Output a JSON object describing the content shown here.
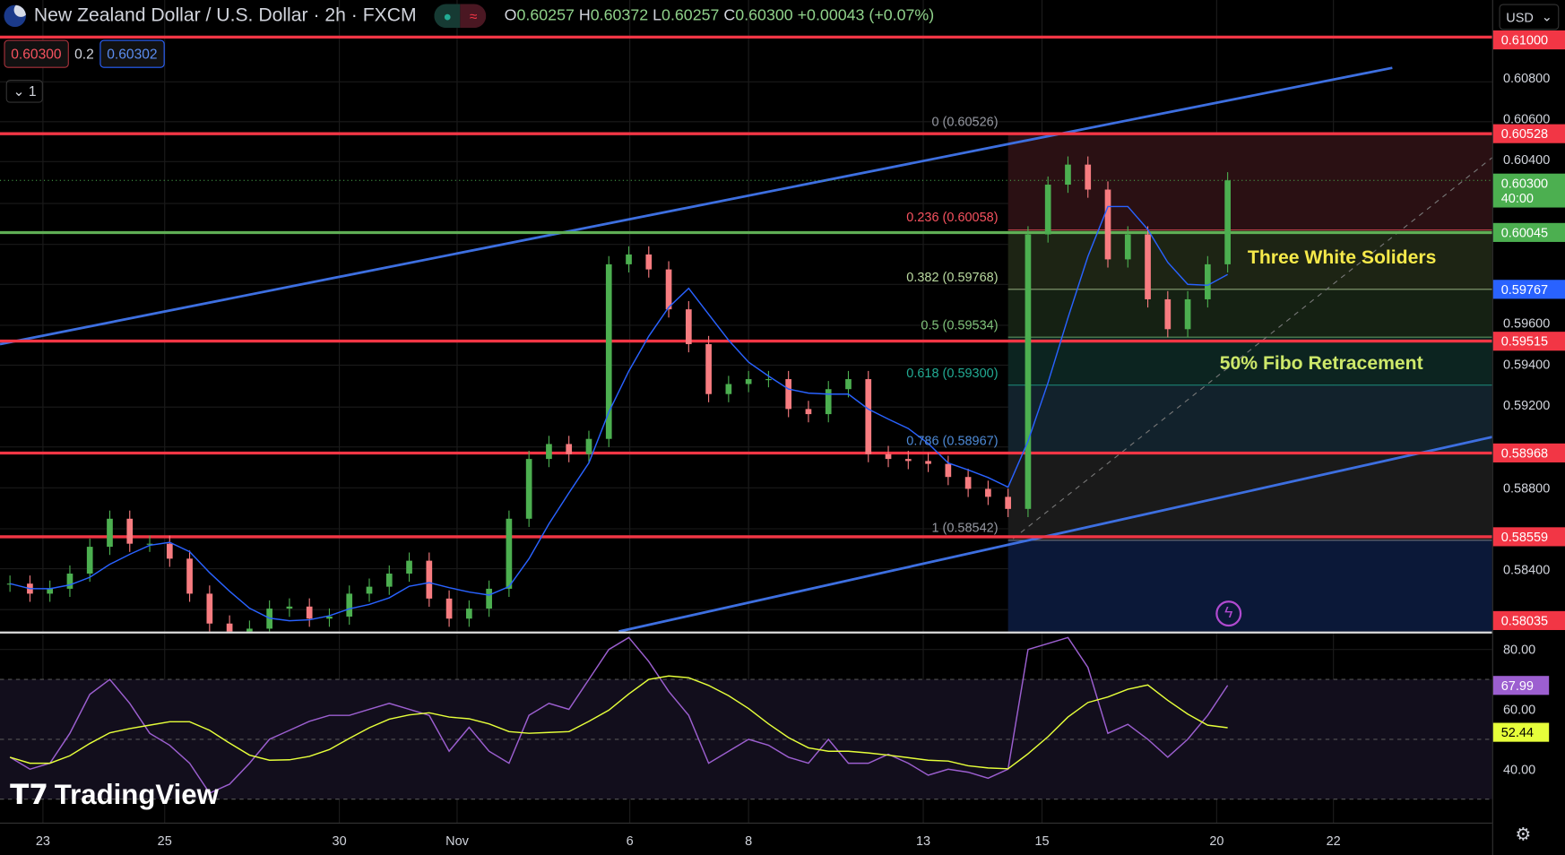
{
  "header": {
    "title": "New Zealand Dollar / U.S. Dollar · 2h · FXCM",
    "open": "0.60257",
    "high": "0.60372",
    "low": "0.60257",
    "close": "0.60300",
    "change": "+0.00043 (+0.07%)",
    "o": "O",
    "h": "H",
    "l": "L",
    "c": "C",
    "toggle_wave": "≈"
  },
  "legend": {
    "sell": "0.60300",
    "spread": "0.2",
    "buy": "0.60302",
    "collapse": "⌄ 1"
  },
  "currency": "USD",
  "annotations": {
    "pattern": "Three White Soliders",
    "fibo": "50% Fibo Retracement"
  },
  "fib_levels": [
    {
      "label": "0 (0.60526)",
      "value": 0.60526,
      "color": "#9598a1"
    },
    {
      "label": "0.236 (0.60058)",
      "value": 0.60058,
      "color": "#f7525f"
    },
    {
      "label": "0.382 (0.59768)",
      "value": 0.59768,
      "color": "#b9d99f"
    },
    {
      "label": "0.5 (0.59534)",
      "value": 0.59534,
      "color": "#7fc27a"
    },
    {
      "label": "0.618 (0.59300)",
      "value": 0.593,
      "color": "#22ab94"
    },
    {
      "label": "0.786 (0.58967)",
      "value": 0.58967,
      "color": "#4e8ad6"
    },
    {
      "label": "1 (0.58542)",
      "value": 0.58542,
      "color": "#9598a1"
    }
  ],
  "price_axis": {
    "ticks": [
      "0.60800",
      "0.60600",
      "0.60400",
      "0.59600",
      "0.59400",
      "0.59200",
      "0.58800",
      "0.58400"
    ],
    "badges": [
      {
        "text": "0.61000",
        "value": 0.61,
        "color": "#f23645"
      },
      {
        "text": "0.60528",
        "value": 0.60528,
        "color": "#f23645"
      },
      {
        "text": "0.60300",
        "sub": "40:00",
        "value": 0.603,
        "color": "#4caf50"
      },
      {
        "text": "0.60045",
        "value": 0.60045,
        "color": "#4caf50"
      },
      {
        "text": "0.59767",
        "value": 0.59767,
        "color": "#2962ff"
      },
      {
        "text": "0.59515",
        "value": 0.59515,
        "color": "#f23645"
      },
      {
        "text": "0.58968",
        "value": 0.58968,
        "color": "#f23645"
      },
      {
        "text": "0.58559",
        "value": 0.58559,
        "color": "#f23645"
      },
      {
        "text": "0.58035",
        "value": 0.58035,
        "color": "#f23645"
      }
    ]
  },
  "rsi_axis": {
    "ticks": [
      "80.00",
      "60.00",
      "40.00"
    ],
    "rsi": "67.99",
    "rsi_color": "#9c5fd0",
    "signal": "52.44",
    "signal_color": "#e6ff3a"
  },
  "time_axis": [
    "23",
    "25",
    "30",
    "Nov",
    "6",
    "8",
    "13",
    "15",
    "20",
    "22"
  ],
  "brand": "TradingView",
  "chart_data": {
    "type": "candlestick",
    "symbol": "NZDUSD",
    "interval": "2h",
    "closes": [
      0.5833,
      0.58281,
      0.58305,
      0.58379,
      0.5851,
      0.58647,
      0.58525,
      0.58525,
      0.58452,
      0.58281,
      0.58135,
      0.58072,
      0.5811,
      0.58208,
      0.58218,
      0.58159,
      0.58169,
      0.58281,
      0.58315,
      0.58379,
      0.58442,
      0.58257,
      0.58159,
      0.58208,
      0.58305,
      0.58647,
      0.58939,
      0.59012,
      0.58963,
      0.59037,
      0.5989,
      0.59938,
      0.59865,
      0.5967,
      0.595,
      0.59256,
      0.59305,
      0.59329,
      0.59329,
      0.59183,
      0.59158,
      0.5928,
      0.59329,
      0.58963,
      0.58939,
      0.58929,
      0.58915,
      0.58851,
      0.58793,
      0.58754,
      0.58695,
      0.60036,
      0.60279,
      0.60377,
      0.60255,
      0.59914,
      0.60036,
      0.59719,
      0.59573,
      0.59719,
      0.5989,
      0.603
    ],
    "rsi": [
      44,
      40,
      42,
      52,
      65,
      70,
      62,
      52,
      48,
      42,
      32,
      35,
      42,
      50,
      53,
      56,
      58,
      58,
      60,
      62,
      60,
      58,
      46,
      54,
      46,
      42,
      58,
      62,
      60,
      70,
      80,
      84,
      76,
      66,
      58,
      42,
      46,
      50,
      48,
      44,
      42,
      50,
      42,
      42,
      45,
      42,
      38,
      40,
      39,
      37,
      40,
      80,
      82,
      84,
      74,
      52,
      55,
      50,
      44,
      50,
      58,
      68
    ],
    "horizontal_levels": {
      "red": [
        0.61,
        0.60528,
        0.59515,
        0.58968,
        0.58559
      ],
      "green": [
        0.60045
      ]
    },
    "colors": {
      "up": "#4caf50",
      "down": "#f77c80",
      "ma": "#2962ff",
      "rsi": "#9c5fd0",
      "signal": "#e6ff3a",
      "level": "#f23645"
    }
  }
}
